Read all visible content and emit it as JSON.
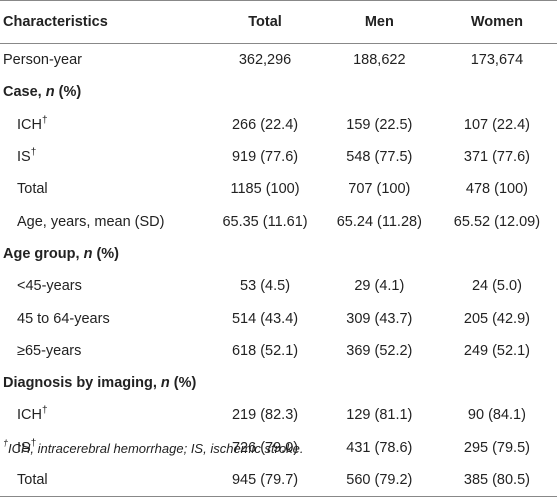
{
  "table": {
    "headers": {
      "characteristics": "Characteristics",
      "total": "Total",
      "men": "Men",
      "women": "Women"
    },
    "rows": [
      {
        "type": "data",
        "label": "Person-year",
        "total": "362,296",
        "men": "188,622",
        "women": "173,674"
      },
      {
        "type": "section",
        "label_pre": "Case, ",
        "label_italic": "n",
        "label_post": " (%)"
      },
      {
        "type": "data",
        "label": "ICH",
        "dagger": "†",
        "total": "266 (22.4)",
        "men": "159 (22.5)",
        "women": "107 (22.4)"
      },
      {
        "type": "data",
        "label": "IS",
        "dagger": "†",
        "total": "919 (77.6)",
        "men": "548 (77.5)",
        "women": "371 (77.6)"
      },
      {
        "type": "data",
        "label": "Total",
        "total": "1185 (100)",
        "men": "707 (100)",
        "women": "478 (100)"
      },
      {
        "type": "data",
        "label": "Age, years, mean (SD)",
        "total": "65.35 (11.61)",
        "men": "65.24 (11.28)",
        "women": "65.52 (12.09)"
      },
      {
        "type": "section",
        "label_pre": "Age group, ",
        "label_italic": "n",
        "label_post": " (%)"
      },
      {
        "type": "data",
        "label": "<45-years",
        "total": "53 (4.5)",
        "men": "29 (4.1)",
        "women": "24 (5.0)"
      },
      {
        "type": "data",
        "label": "45 to 64-years",
        "total": "514 (43.4)",
        "men": "309 (43.7)",
        "women": "205 (42.9)"
      },
      {
        "type": "data",
        "label": "≥65-years",
        "total": "618 (52.1)",
        "men": "369 (52.2)",
        "women": "249 (52.1)"
      },
      {
        "type": "section",
        "label_pre": "Diagnosis by imaging, ",
        "label_italic": "n",
        "label_post": " (%)"
      },
      {
        "type": "data",
        "label": "ICH",
        "dagger": "†",
        "total": "219 (82.3)",
        "men": "129 (81.1)",
        "women": "90 (84.1)"
      },
      {
        "type": "data",
        "label": "IS",
        "dagger": "†",
        "total": "726 (79.0)",
        "men": "431 (78.6)",
        "women": "295 (79.5)"
      },
      {
        "type": "data",
        "label": "Total",
        "total": "945 (79.7)",
        "men": "560 (79.2)",
        "women": "385 (80.5)"
      }
    ]
  },
  "footnote": {
    "dagger": "†",
    "text": "ICH, intracerebral hemorrhage; IS, ischemic stroke."
  }
}
